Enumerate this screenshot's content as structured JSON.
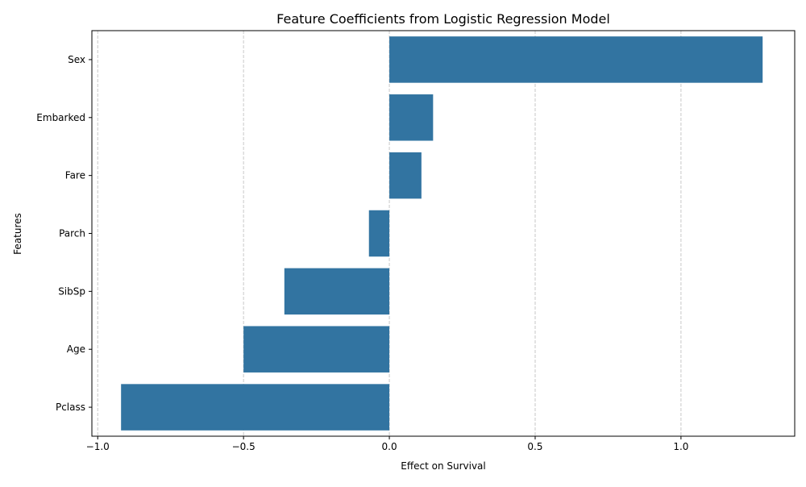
{
  "chart_data": {
    "type": "bar",
    "orientation": "horizontal",
    "title": "Feature Coefficients from Logistic Regression Model",
    "xlabel": "Effect on Survival",
    "ylabel": "Features",
    "categories": [
      "Sex",
      "Embarked",
      "Fare",
      "Parch",
      "SibSp",
      "Age",
      "Pclass"
    ],
    "values": [
      1.28,
      0.15,
      0.11,
      -0.07,
      -0.36,
      -0.5,
      -0.92
    ],
    "xlim": [
      -1.02,
      1.39
    ],
    "xticks": [
      -1.0,
      -0.5,
      0.0,
      0.5,
      1.0
    ],
    "xtick_labels": [
      "−1.0",
      "−0.5",
      "0.0",
      "0.5",
      "1.0"
    ],
    "grid": {
      "x": true,
      "y": false,
      "style": "dashed"
    },
    "bar_color": "#3274a1",
    "grid_color": "#c8c8c8"
  }
}
